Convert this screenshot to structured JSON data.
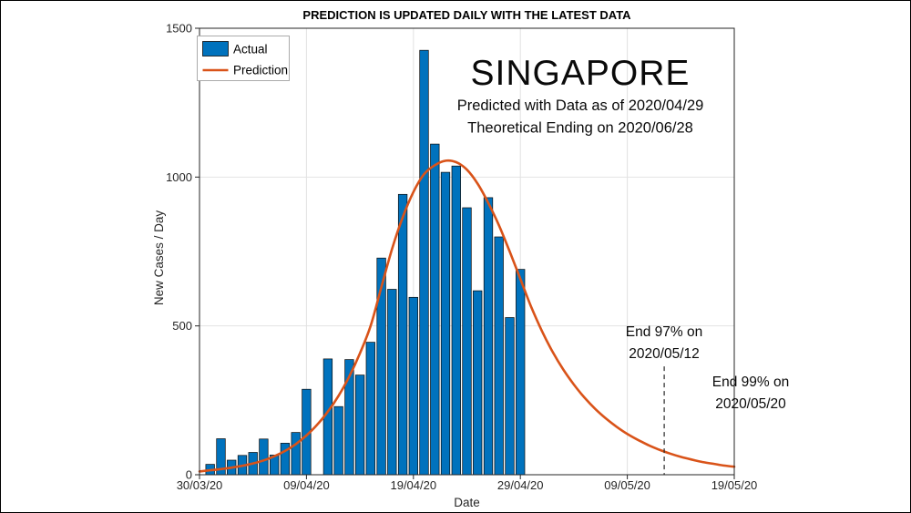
{
  "headline": {
    "country": "SINGAPORE",
    "line1": "Predicted with Data as of 2020/04/29",
    "line2": "Theoretical Ending on 2020/06/28"
  },
  "legend": {
    "actual": "Actual",
    "prediction": "Prediction"
  },
  "annotations": {
    "end97": {
      "line1": "End 97% on",
      "line2": "2020/05/12",
      "day": 43.45,
      "top_value": 364
    },
    "end99": {
      "line1": "End 99% on",
      "line2": "2020/05/20"
    }
  },
  "chart_data": {
    "type": "bar+line",
    "title": "PREDICTION IS UPDATED DAILY WITH THE LATEST DATA",
    "xlabel": "Date",
    "ylabel": "New Cases / Day",
    "grid": true,
    "legend_position": "top-left",
    "x_axis": {
      "tick_labels": [
        "30/03/20",
        "09/04/20",
        "19/04/20",
        "29/04/20",
        "09/05/20",
        "19/05/20"
      ],
      "tick_days": [
        0,
        10,
        20,
        30,
        40,
        50
      ],
      "days_total": 50,
      "start_date_label": "30/03/20"
    },
    "y_axis": {
      "ticks": [
        "0",
        "500",
        "1000",
        "1500"
      ],
      "tick_values": [
        0,
        500,
        1000,
        1500
      ],
      "max": 1500
    },
    "actual_bars": {
      "name": "Actual",
      "start_day_offset": 1,
      "dates": [
        "31/03/20",
        "01/04/20",
        "02/04/20",
        "03/04/20",
        "04/04/20",
        "05/04/20",
        "06/04/20",
        "07/04/20",
        "08/04/20",
        "09/04/20",
        "10/04/20",
        "11/04/20",
        "12/04/20",
        "13/04/20",
        "14/04/20",
        "15/04/20",
        "16/04/20",
        "17/04/20",
        "18/04/20",
        "19/04/20",
        "20/04/20",
        "21/04/20",
        "22/04/20",
        "23/04/20",
        "24/04/20",
        "25/04/20",
        "26/04/20",
        "27/04/20",
        "28/04/20",
        "29/04/20"
      ],
      "values": [
        35,
        121,
        49,
        65,
        75,
        120,
        66,
        106,
        142,
        287,
        0,
        389,
        229,
        387,
        335,
        445,
        728,
        623,
        942,
        596,
        1426,
        1111,
        1016,
        1037,
        897,
        618,
        931,
        799,
        528,
        690
      ]
    },
    "prediction_curve": {
      "name": "Prediction",
      "points_day_value": [
        [
          0,
          11
        ],
        [
          1,
          15
        ],
        [
          2,
          19
        ],
        [
          3,
          24
        ],
        [
          4,
          30
        ],
        [
          5,
          38
        ],
        [
          6,
          48
        ],
        [
          7,
          62
        ],
        [
          8,
          80
        ],
        [
          9,
          103
        ],
        [
          10,
          132
        ],
        [
          11,
          168
        ],
        [
          12,
          212
        ],
        [
          13,
          265
        ],
        [
          14,
          330
        ],
        [
          15,
          408
        ],
        [
          16,
          500
        ],
        [
          17,
          630
        ],
        [
          18,
          758
        ],
        [
          19,
          865
        ],
        [
          20,
          950
        ],
        [
          21,
          1010
        ],
        [
          22,
          1040
        ],
        [
          23,
          1055
        ],
        [
          24,
          1050
        ],
        [
          25,
          1025
        ],
        [
          26,
          978
        ],
        [
          27,
          913
        ],
        [
          28,
          838
        ],
        [
          29,
          750
        ],
        [
          30,
          658
        ],
        [
          31,
          565
        ],
        [
          32,
          484
        ],
        [
          33,
          414
        ],
        [
          34,
          354
        ],
        [
          35,
          303
        ],
        [
          36,
          259
        ],
        [
          37,
          221
        ],
        [
          38,
          189
        ],
        [
          39,
          161
        ],
        [
          40,
          137
        ],
        [
          41,
          117
        ],
        [
          42,
          99
        ],
        [
          43,
          84
        ],
        [
          44,
          71
        ],
        [
          45,
          60
        ],
        [
          46,
          51
        ],
        [
          47,
          43
        ],
        [
          48,
          37
        ],
        [
          49,
          31
        ],
        [
          50,
          27
        ]
      ]
    },
    "colors": {
      "bar_fill": "#0072BD",
      "bar_edge": "#0b0b0b",
      "prediction_line": "#D95319",
      "grid_line": "#E2E2E2",
      "axis": "#262626",
      "background": "#FFFFFF"
    }
  }
}
